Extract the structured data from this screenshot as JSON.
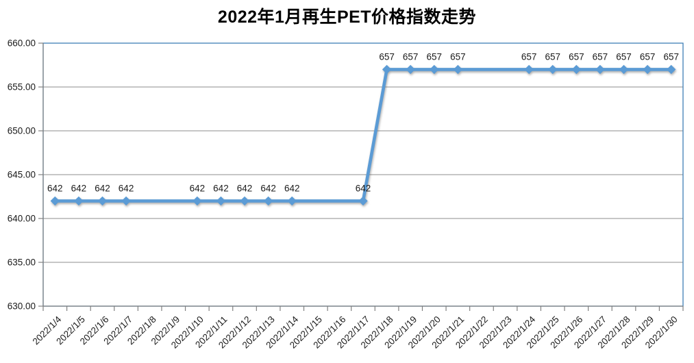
{
  "title": "2022年1月再生PET价格指数走势",
  "chart_data": {
    "type": "line",
    "title": "2022年1月再生PET价格指数走势",
    "categories": [
      "2022/1/4",
      "2022/1/5",
      "2022/1/6",
      "2022/1/7",
      "2022/1/8",
      "2022/1/9",
      "2022/1/10",
      "2022/1/11",
      "2022/1/12",
      "2022/1/13",
      "2022/1/14",
      "2022/1/15",
      "2022/1/16",
      "2022/1/17",
      "2022/1/18",
      "2022/1/19",
      "2022/1/20",
      "2022/1/21",
      "2022/1/22",
      "2022/1/23",
      "2022/1/24",
      "2022/1/25",
      "2022/1/26",
      "2022/1/27",
      "2022/1/28",
      "2022/1/29",
      "2022/1/30"
    ],
    "values": [
      642,
      642,
      642,
      642,
      null,
      null,
      642,
      642,
      642,
      642,
      642,
      null,
      null,
      642,
      657,
      657,
      657,
      657,
      null,
      null,
      657,
      657,
      657,
      657,
      657,
      657,
      657
    ],
    "data_labels_shown": true,
    "ylim": [
      630,
      660
    ],
    "ytick_step": 5,
    "ytick_labels": [
      "660.00",
      "655.00",
      "650.00",
      "645.00",
      "640.00",
      "635.00",
      "630.00"
    ],
    "xlabel": "",
    "ylabel": "",
    "grid": "horizontal",
    "legend": "none",
    "marker": "diamond",
    "x_label_rotation_deg": -45,
    "colors": {
      "line": "#5B9BD5",
      "marker": "#5B9BD5",
      "plot_border": "#3D7EB5",
      "gridline": "#8C8C8C",
      "axis_line": "#808080",
      "text": "#1a1a1a",
      "title_text": "#000000",
      "background": "#ffffff"
    }
  }
}
